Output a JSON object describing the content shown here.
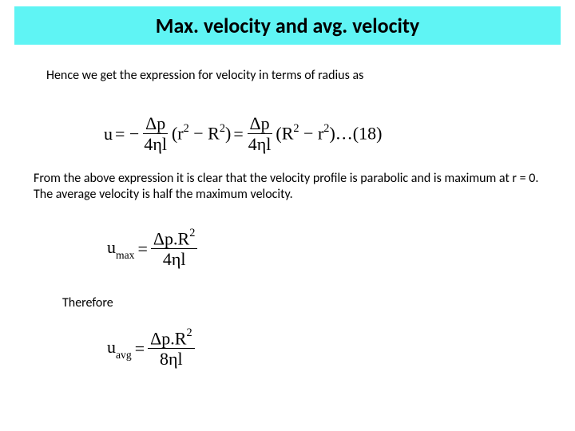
{
  "title": "Max. velocity and avg. velocity",
  "para1": "Hence we get the expression for velocity in terms of radius as",
  "para2": "From the above expression it is clear that the velocity profile is parabolic and is maximum at r = 0. The average velocity is half the maximum velocity.",
  "therefore": "Therefore",
  "eq1": {
    "lhs": "u",
    "eq_sign1": "= −",
    "frac1_num": "Δp",
    "frac1_den": "4ηl",
    "term1_open": "(r",
    "term1_sup1": "2",
    "term1_mid": " − R",
    "term1_sup2": "2",
    "term1_close": ")",
    "eq_sign2": "=",
    "frac2_num": "Δp",
    "frac2_den": "4ηl",
    "term2_open": "(R",
    "term2_sup1": "2",
    "term2_mid": " − r",
    "term2_sup2": "2",
    "term2_close": ")…(18)"
  },
  "eq2": {
    "lhs_base": "u",
    "lhs_sub": "max",
    "eq_sign": "=",
    "num_left": "Δp.R",
    "num_sup": "2",
    "den": "4ηl"
  },
  "eq3": {
    "lhs_base": "u",
    "lhs_sub": "avg",
    "eq_sign": "=",
    "num_left": "Δp.R",
    "num_sup": "2",
    "den": "8ηl"
  },
  "colors": {
    "title_bg": "#5ff4f4",
    "text": "#000000",
    "page_bg": "#ffffff"
  }
}
